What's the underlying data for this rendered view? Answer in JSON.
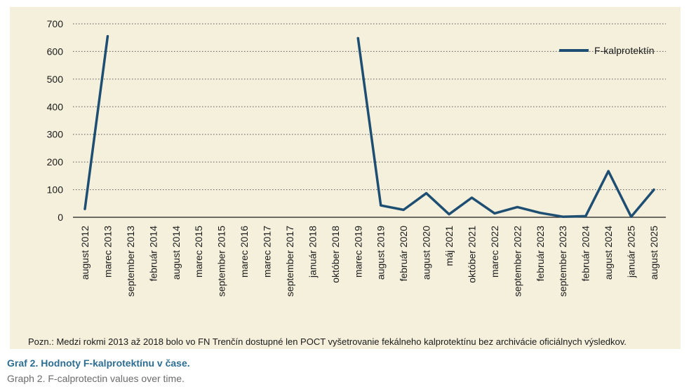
{
  "note": "Pozn.: Medzi rokmi 2013 až 2018 bolo vo FN Trenčín dostupné len POCT vyšetrovanie fekálneho kalprotektínu bez archivácie oficiálnych výsledkov.",
  "caption": {
    "title": "Graf 2. Hodnoty F-kalprotektínu v čase.",
    "english": "Graph 2. F-calprotectin values over time."
  },
  "colors": {
    "line": "#1f4e73",
    "panel": "#f4f0dc",
    "grid": "#555555"
  },
  "chart_data": {
    "type": "line",
    "title": "",
    "xlabel": "",
    "ylabel": "",
    "ylim": [
      0,
      700
    ],
    "yticks": [
      0,
      100,
      200,
      300,
      400,
      500,
      600,
      700
    ],
    "grid": true,
    "legend_position": "top-right",
    "categories": [
      "august 2012",
      "marec 2013",
      "september 2013",
      "február 2014",
      "august 2014",
      "marec 2015",
      "september 2015",
      "marec 2016",
      "marec 2017",
      "september 2017",
      "január 2018",
      "október 2018",
      "marec 2019",
      "august 2019",
      "február 2020",
      "august 2020",
      "máj 2021",
      "október 2021",
      "marec 2022",
      "september 2022",
      "február 2023",
      "september 2023",
      "február 2024",
      "august 2024",
      "január 2025",
      "august 2025"
    ],
    "series": [
      {
        "name": "F-kalprotektín",
        "values": [
          30,
          655,
          null,
          null,
          null,
          null,
          null,
          null,
          null,
          null,
          null,
          null,
          648,
          43,
          27,
          87,
          11,
          71,
          14,
          37,
          16,
          2,
          4,
          167,
          2,
          100
        ]
      }
    ]
  }
}
